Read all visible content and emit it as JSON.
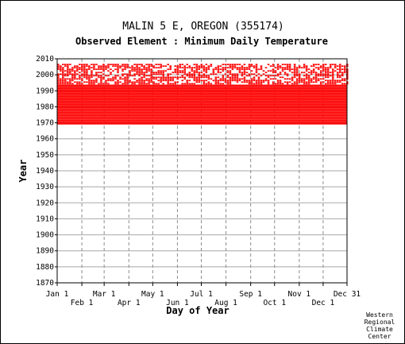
{
  "chart_data": {
    "type": "scatter",
    "title": "MALIN 5 E, OREGON   (355174)",
    "subtitle": "Observed Element : Minimum Daily Temperature",
    "xlabel": "Day of Year",
    "ylabel": "Year",
    "credit": [
      "Western",
      "Regional",
      "Climate",
      "Center"
    ],
    "xlim": [
      1,
      365
    ],
    "ylim": [
      1870,
      2010
    ],
    "x_ticks": [
      {
        "label": "Jan 1",
        "day": 1,
        "row": 0
      },
      {
        "label": "Feb 1",
        "day": 32,
        "row": 1
      },
      {
        "label": "Mar 1",
        "day": 60,
        "row": 0
      },
      {
        "label": "Apr 1",
        "day": 91,
        "row": 1
      },
      {
        "label": "May 1",
        "day": 121,
        "row": 0
      },
      {
        "label": "Jun 1",
        "day": 152,
        "row": 1
      },
      {
        "label": "Jul 1",
        "day": 182,
        "row": 0
      },
      {
        "label": "Aug 1",
        "day": 213,
        "row": 1
      },
      {
        "label": "Sep 1",
        "day": 244,
        "row": 0
      },
      {
        "label": "Oct 1",
        "day": 274,
        "row": 1
      },
      {
        "label": "Nov 1",
        "day": 305,
        "row": 0
      },
      {
        "label": "Dec 1",
        "day": 335,
        "row": 1
      },
      {
        "label": "Dec 31",
        "day": 365,
        "row": 0
      }
    ],
    "y_ticks": [
      1870,
      1880,
      1890,
      1900,
      1910,
      1920,
      1930,
      1940,
      1950,
      1960,
      1970,
      1980,
      1990,
      2000,
      2010
    ],
    "grid": true,
    "marker_color": "#ff0000",
    "series": [
      {
        "start_day": 1,
        "end_day": 365,
        "start_year": 1969,
        "end_year": 2006,
        "coverage": "dense 1969-1993, scattered 1994-2006"
      }
    ]
  }
}
